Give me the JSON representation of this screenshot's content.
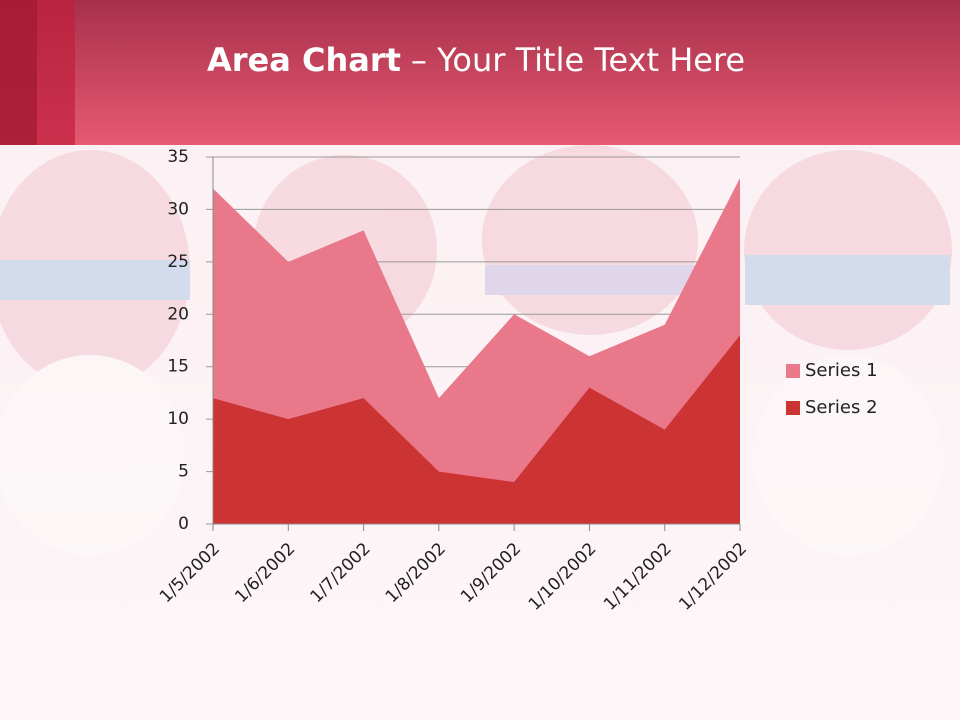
{
  "chart_data": {
    "type": "area",
    "title": "Area Chart",
    "subtitle": "– Your Title Text Here",
    "x": [
      "1/5/2002",
      "1/6/2002",
      "1/7/2002",
      "1/8/2002",
      "1/9/2002",
      "1/10/2002",
      "1/11/2002",
      "1/12/2002"
    ],
    "series": [
      {
        "name": "Series 1",
        "color": "#e8788a",
        "values": [
          32,
          25,
          28,
          12,
          20,
          16,
          19,
          33
        ]
      },
      {
        "name": "Series 2",
        "color": "#cc3333",
        "values": [
          12,
          10,
          12,
          5,
          4,
          13,
          9,
          18
        ]
      }
    ],
    "ylim": [
      0,
      35
    ],
    "yticks": [
      0,
      5,
      10,
      15,
      20,
      25,
      30,
      35
    ],
    "grid": true,
    "legend": "right"
  }
}
